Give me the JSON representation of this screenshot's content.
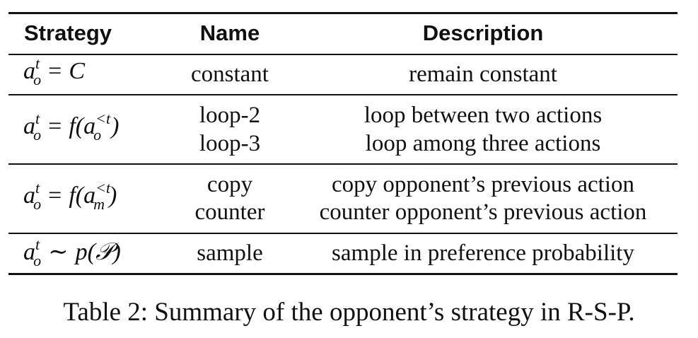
{
  "table": {
    "headers": {
      "strategy": "Strategy",
      "name": "Name",
      "description": "Description"
    },
    "rows": [
      {
        "strategy": {
          "lhs": "a",
          "sup": "t",
          "sub": "o",
          "op": "=",
          "rhs": "C"
        },
        "names": [
          "constant"
        ],
        "descriptions": [
          "remain constant"
        ]
      },
      {
        "strategy": {
          "lhs": "a",
          "sup": "t",
          "sub": "o",
          "op": "=",
          "rhs": "f(a",
          "rhs_sup": "<t",
          "rhs_sub": "o",
          "rhs_close": ")"
        },
        "names": [
          "loop-2",
          "loop-3"
        ],
        "descriptions": [
          "loop between two actions",
          "loop among three actions"
        ]
      },
      {
        "strategy": {
          "lhs": "a",
          "sup": "t",
          "sub": "o",
          "op": "=",
          "rhs": "f(a",
          "rhs_sup": "<t",
          "rhs_sub": "m",
          "rhs_close": ")"
        },
        "names": [
          "copy",
          "counter"
        ],
        "descriptions": [
          "copy opponent’s previous action",
          "counter opponent’s previous action"
        ]
      },
      {
        "strategy": {
          "lhs": "a",
          "sup": "t",
          "sub": "o",
          "op": "∼",
          "rhs": "p(𝒫)"
        },
        "names": [
          "sample"
        ],
        "descriptions": [
          "sample in preference probability"
        ]
      }
    ]
  },
  "caption": "Table 2: Summary of the opponent’s strategy in R-S-P."
}
